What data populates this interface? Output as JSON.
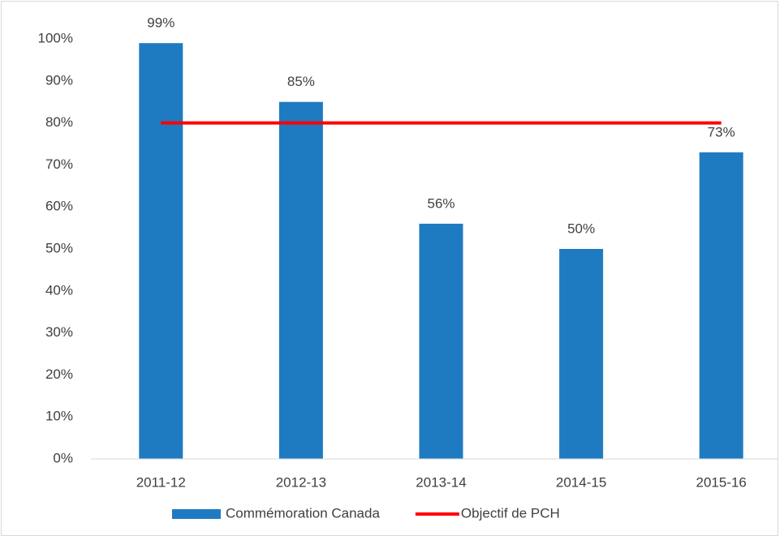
{
  "chart_data": {
    "type": "bar",
    "categories": [
      "2011-12",
      "2012-13",
      "2013-14",
      "2014-15",
      "2015-16"
    ],
    "series": [
      {
        "name": "Commémoration Canada",
        "type": "bar",
        "color": "#1f7bc1",
        "values": [
          99,
          85,
          56,
          50,
          73
        ],
        "value_labels": [
          "99%",
          "85%",
          "56%",
          "50%",
          "73%"
        ]
      },
      {
        "name": "Objectif de PCH",
        "type": "line",
        "color": "#ff0000",
        "values": [
          80,
          80,
          80,
          80,
          80
        ]
      }
    ],
    "ylim": [
      0,
      100
    ],
    "yticks": [
      {
        "value": 0,
        "label": "0%"
      },
      {
        "value": 10,
        "label": "10%"
      },
      {
        "value": 20,
        "label": "20%"
      },
      {
        "value": 30,
        "label": "30%"
      },
      {
        "value": 40,
        "label": "40%"
      },
      {
        "value": 50,
        "label": "50%"
      },
      {
        "value": 60,
        "label": "60%"
      },
      {
        "value": 70,
        "label": "70%"
      },
      {
        "value": 80,
        "label": "80%"
      },
      {
        "value": 90,
        "label": "90%"
      },
      {
        "value": 100,
        "label": "100%"
      }
    ],
    "grid": false,
    "legend": "bottom"
  }
}
